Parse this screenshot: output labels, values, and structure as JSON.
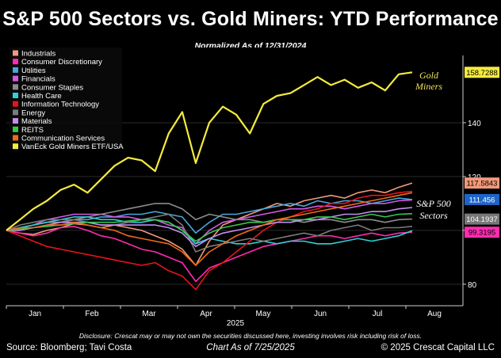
{
  "chart_data": {
    "type": "line",
    "title": "S&P 500 Sectors vs. Gold Miners: YTD Performance",
    "subtitle": "Normalized As of 12/31/2024",
    "xlabel": "2025",
    "x_ticks": [
      "Jan",
      "Feb",
      "Mar",
      "Apr",
      "May",
      "Jun",
      "Jul",
      "Aug"
    ],
    "y_ticks": [
      80,
      100,
      120,
      140
    ],
    "y_tick_labels": [
      "80",
      "",
      "120",
      "140"
    ],
    "ylim": [
      72,
      165
    ],
    "annotations": {
      "gold": [
        "Gold",
        "Miners"
      ],
      "sectors": [
        "S&P 500",
        "Sectors"
      ]
    },
    "x": [
      0,
      1,
      2,
      3,
      4,
      5,
      6,
      7,
      8,
      9,
      10,
      11,
      12,
      13,
      14,
      15,
      16,
      17,
      18,
      19,
      20,
      21,
      22,
      23,
      24,
      25,
      26,
      27,
      28,
      29,
      30
    ],
    "series": [
      {
        "name": "Industrials",
        "color": "#f2997a",
        "values": [
          100,
          99,
          98.5,
          100,
          101,
          102.5,
          102,
          101,
          102,
          101,
          100,
          98,
          96,
          93,
          87,
          96,
          102,
          104,
          106,
          108,
          110,
          109,
          111,
          112,
          113,
          112,
          114,
          115,
          114,
          116,
          117.5843
        ]
      },
      {
        "name": "Consumer Discretionary",
        "color": "#ff2bb0",
        "values": [
          100,
          99,
          98,
          99,
          101,
          101.5,
          100,
          98,
          97,
          95,
          93,
          92,
          90,
          88,
          81,
          86,
          88,
          90,
          92,
          94,
          95,
          96,
          97,
          98,
          98,
          97,
          98,
          99,
          98,
          99,
          99.3195
        ]
      },
      {
        "name": "Utilities",
        "color": "#49a6e0",
        "values": [
          100,
          101,
          102,
          103,
          103,
          104,
          104,
          105,
          105,
          106,
          106,
          107,
          106,
          105,
          99,
          103,
          106,
          106,
          107,
          108,
          109,
          110,
          109,
          111,
          110,
          111,
          111,
          110,
          111,
          112,
          111.456
        ]
      },
      {
        "name": "Financials",
        "color": "#d45be6",
        "values": [
          100,
          101,
          102,
          104,
          105,
          106,
          106,
          106,
          105,
          105,
          104,
          104,
          102,
          101,
          95,
          100,
          103,
          104,
          105,
          106,
          107,
          108,
          108,
          109,
          109,
          108,
          109,
          110,
          110,
          111,
          111.3
        ]
      },
      {
        "name": "Consumer Staples",
        "color": "#8c8c8c",
        "values": [
          100,
          101,
          102,
          103,
          103,
          104,
          105,
          106,
          107,
          108,
          109,
          110,
          110,
          108,
          104,
          106,
          105,
          104,
          104,
          103,
          104,
          104,
          103,
          104,
          104,
          103,
          104,
          104,
          103,
          104,
          104.1937
        ]
      },
      {
        "name": "Health Care",
        "color": "#2fd1d6",
        "values": [
          100,
          101,
          102,
          103,
          104,
          105,
          105,
          104,
          104,
          103,
          103,
          104,
          103,
          100,
          95,
          97,
          96,
          95,
          95,
          96,
          95,
          96,
          96,
          95,
          95,
          96,
          97,
          96,
          97,
          98,
          99.9
        ]
      },
      {
        "name": "Information Technology",
        "color": "#e8141c",
        "values": [
          100,
          98,
          96,
          94,
          93,
          92,
          91,
          90,
          89,
          88,
          87,
          88,
          85,
          83,
          78,
          85,
          88,
          92,
          96,
          100,
          103,
          105,
          107,
          108,
          110,
          110,
          112,
          113,
          113,
          114,
          114.5
        ]
      },
      {
        "name": "Energy",
        "color": "#7b7b7b",
        "values": [
          100,
          102,
          103,
          104,
          104,
          104,
          103,
          102,
          102,
          103,
          104,
          105,
          106,
          102,
          92,
          94,
          95,
          96,
          97,
          96,
          97,
          98,
          99,
          98,
          100,
          101,
          102,
          100,
          101,
          101,
          101.5
        ]
      },
      {
        "name": "Materials",
        "color": "#c48ef2",
        "values": [
          100,
          100,
          101,
          102,
          103,
          103,
          103,
          102,
          102,
          102,
          102,
          102,
          101,
          99,
          94,
          97,
          99,
          100,
          101,
          102,
          103,
          103,
          104,
          104,
          105,
          106,
          106,
          107,
          107,
          108,
          108.5
        ]
      },
      {
        "name": "REITS",
        "color": "#35c94a",
        "values": [
          100,
          100.5,
          101,
          101.5,
          102,
          102.5,
          103,
          103,
          103,
          103.5,
          104,
          104,
          103,
          100,
          96,
          99,
          101,
          102,
          103,
          103,
          104,
          104,
          104,
          105,
          105,
          104,
          105,
          106,
          105,
          106,
          106.2
        ]
      },
      {
        "name": "Communication Services",
        "color": "#f06a1a",
        "values": [
          100,
          101,
          101,
          102,
          102,
          103,
          102,
          101,
          100,
          98,
          97,
          96,
          95,
          92,
          87,
          92,
          95,
          98,
          100,
          102,
          104,
          105,
          106,
          107,
          108,
          109,
          110,
          111,
          112,
          113,
          114
        ]
      },
      {
        "name": "VanEck Gold Miners ETF/USA",
        "color": "#f5ec3c",
        "values": [
          100,
          104,
          108,
          111,
          115,
          117,
          114,
          119,
          124,
          127,
          126,
          122,
          136,
          144,
          125,
          140,
          146,
          143,
          136,
          147,
          150,
          151,
          154,
          157,
          154,
          156,
          153,
          155,
          152,
          158,
          158.7288
        ]
      }
    ],
    "end_labels": [
      {
        "series": "VanEck Gold Miners ETF/USA",
        "text": "158.7288",
        "bg": "#f5ec3c",
        "fg": "#000000"
      },
      {
        "series": "Industrials",
        "text": "117.5843",
        "bg": "#f2997a",
        "fg": "#000000"
      },
      {
        "series": "Utilities",
        "text": "111.456",
        "bg": "#1e64c8",
        "fg": "#ffffff"
      },
      {
        "series": "Consumer Staples",
        "text": "104.1937",
        "bg": "#777777",
        "fg": "#ffffff"
      },
      {
        "series": "Consumer Discretionary",
        "text": "99.3195",
        "bg": "#ff2bb0",
        "fg": "#000000"
      }
    ]
  },
  "footer": {
    "disclosure": "Disclosure: Crescat may or may not own the securities discussed here, investing involves risk including risk of loss.",
    "source": "Source: Bloomberg; Tavi Costa",
    "as_of": "Chart As of 7/25/2025",
    "copyright": "© 2025 Crescat Capital LLC"
  }
}
